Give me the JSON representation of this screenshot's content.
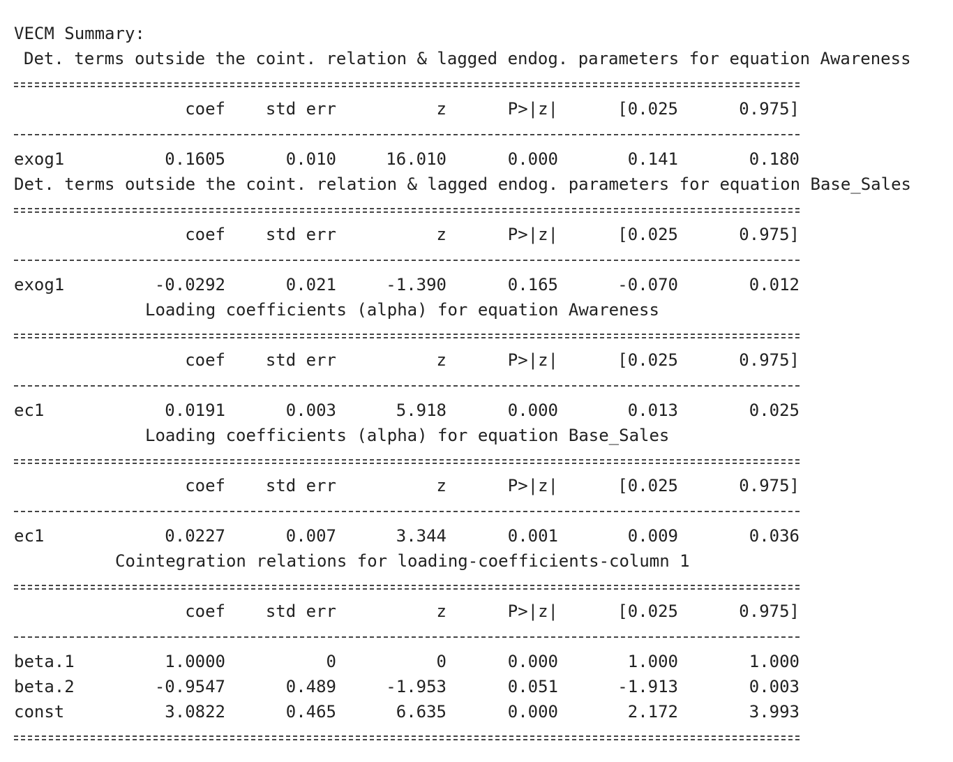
{
  "summary_title": "VECM Summary:",
  "columns": [
    "coef",
    "std err",
    "z",
    "P>|z|",
    "[0.025",
    "0.975]"
  ],
  "sections": [
    {
      "title": "Det. terms outside the coint. relation & lagged endog. parameters for equation Awareness",
      "indent": 14,
      "rows": [
        {
          "name": "exog1",
          "coef": "0.1605",
          "std_err": "0.010",
          "z": "16.010",
          "p": "0.000",
          "lo": "0.141",
          "hi": "0.180"
        }
      ]
    },
    {
      "title": "Det. terms outside the coint. relation & lagged endog. parameters for equation Base_Sales",
      "indent": 0,
      "rows": [
        {
          "name": "exog1",
          "coef": "-0.0292",
          "std_err": "0.021",
          "z": "-1.390",
          "p": "0.165",
          "lo": "-0.070",
          "hi": "0.012"
        }
      ]
    },
    {
      "title": "Loading coefficients (alpha) for equation Awareness",
      "indent": 188,
      "rows": [
        {
          "name": "ec1",
          "coef": "0.0191",
          "std_err": "0.003",
          "z": "5.918",
          "p": "0.000",
          "lo": "0.013",
          "hi": "0.025"
        }
      ]
    },
    {
      "title": "Loading coefficients (alpha) for equation Base_Sales",
      "indent": 188,
      "rows": [
        {
          "name": "ec1",
          "coef": "0.0227",
          "std_err": "0.007",
          "z": "3.344",
          "p": "0.001",
          "lo": "0.009",
          "hi": "0.036"
        }
      ]
    },
    {
      "title": "Cointegration relations for loading-coefficients-column 1",
      "indent": 145,
      "rows": [
        {
          "name": "beta.1",
          "coef": "1.0000",
          "std_err": "0",
          "z": "0",
          "p": "0.000",
          "lo": "1.000",
          "hi": "1.000"
        },
        {
          "name": "beta.2",
          "coef": "-0.9547",
          "std_err": "0.489",
          "z": "-1.953",
          "p": "0.051",
          "lo": "-1.913",
          "hi": "0.003"
        },
        {
          "name": "const",
          "coef": "3.0822",
          "std_err": "0.465",
          "z": "6.635",
          "p": "0.000",
          "lo": "2.172",
          "hi": "3.993"
        }
      ]
    }
  ]
}
